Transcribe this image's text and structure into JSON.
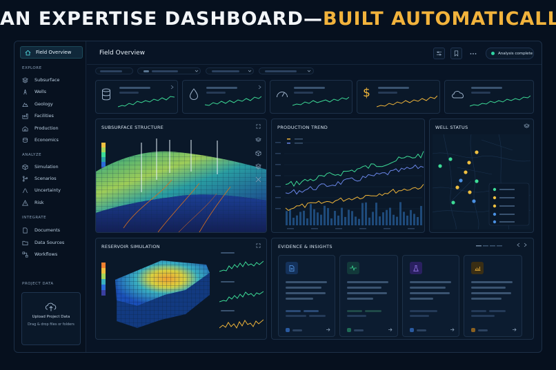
{
  "headline": {
    "part1": "AN EXPERTISE DASHBOARD—",
    "part2": "BUILT AUTOMATICALLY"
  },
  "sidebar": {
    "active": "Field Overview",
    "sections": [
      {
        "label": "EXPLORE",
        "items": [
          "Subsurface",
          "Wells",
          "Geology",
          "Facilities",
          "Production",
          "Economics"
        ]
      },
      {
        "label": "ANALYZE",
        "items": [
          "Simulation",
          "Scenarios",
          "Uncertainty",
          "Risk"
        ]
      },
      {
        "label": "INTEGRATE",
        "items": [
          "Documents",
          "Data Sources",
          "Workflows"
        ]
      }
    ],
    "project_data_label": "PROJECT DATA",
    "upload_title": "Upload Project Data",
    "upload_hint": "Drag & drop files or folders"
  },
  "header": {
    "title": "Field Overview",
    "status": "Analysis complete"
  },
  "panels": {
    "subsurface": "SUBSURFACE STRUCTURE",
    "production": "PRODUCTION TREND",
    "wells": "WELL STATUS",
    "reservoir": "RESERVOIR SIMULATION",
    "evidence": "EVIDENCE & INSIGHTS"
  },
  "icons": {
    "kpis": [
      "database-icon",
      "droplet-icon",
      "gauge-icon",
      "dollar-icon",
      "cloud-icon"
    ],
    "evidence": [
      "document-icon",
      "pulse-icon",
      "flask-icon",
      "chart-icon"
    ]
  },
  "colors": {
    "accent": "#f2b33c",
    "teal": "#2fd3a1",
    "line_green": "#3ddc97",
    "line_blue": "#6a86e8",
    "line_orange": "#f0b53a",
    "well_green": "#3ddc97",
    "well_yellow": "#f0c040",
    "well_blue": "#4a90e2"
  }
}
